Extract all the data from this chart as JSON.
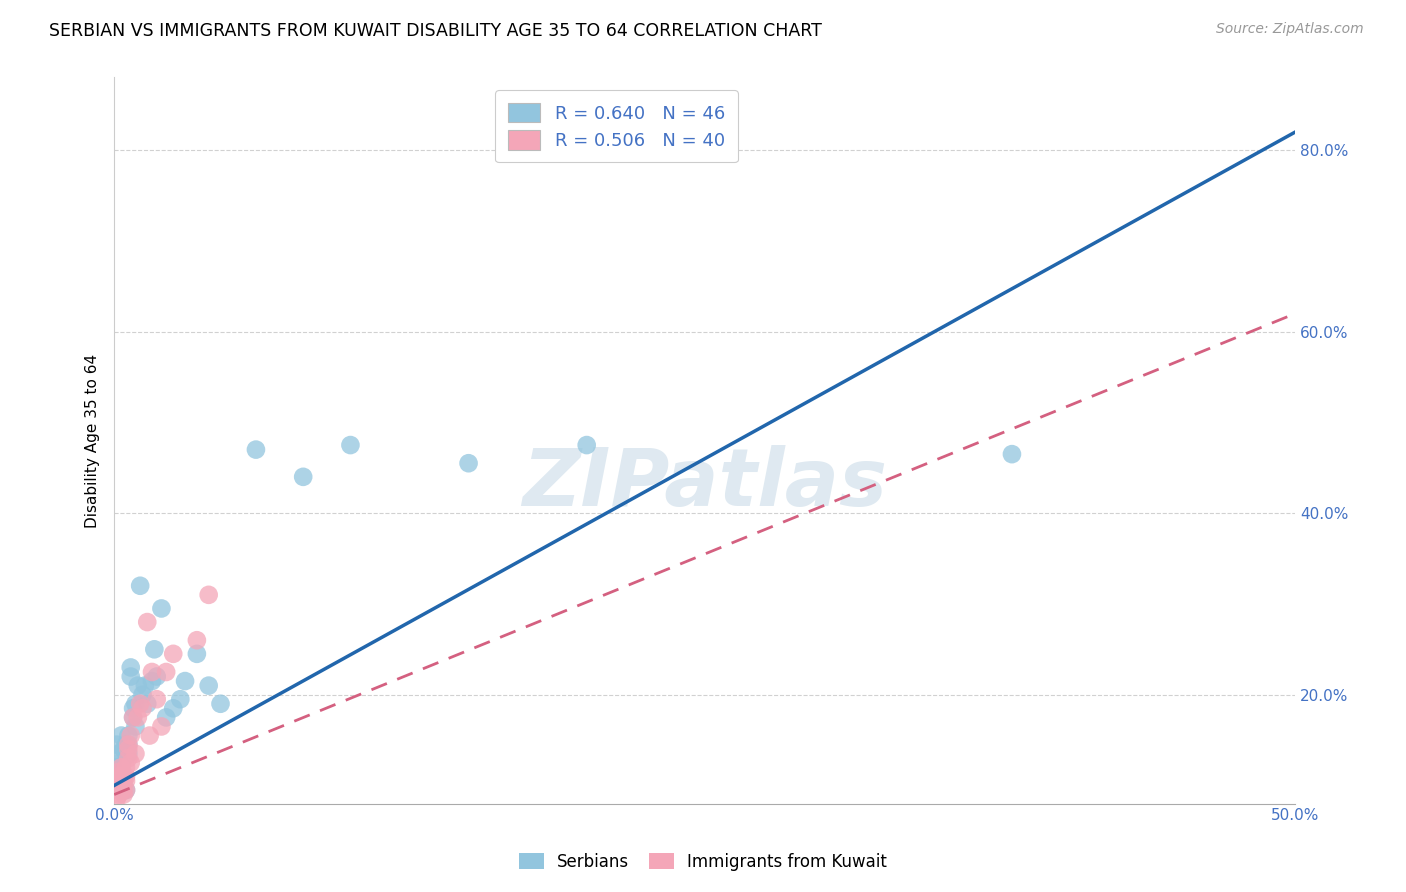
{
  "title": "SERBIAN VS IMMIGRANTS FROM KUWAIT DISABILITY AGE 35 TO 64 CORRELATION CHART",
  "source": "Source: ZipAtlas.com",
  "ylabel": "Disability Age 35 to 64",
  "watermark": "ZIPatlas",
  "legend_label1": "Serbians",
  "legend_label2": "Immigrants from Kuwait",
  "blue_color": "#92c5de",
  "pink_color": "#f4a6b8",
  "blue_line_color": "#2166ac",
  "pink_line_color": "#d46080",
  "xlim": [
    0.0,
    0.5
  ],
  "ylim": [
    0.08,
    0.88
  ],
  "xticks": [
    0.0,
    0.1,
    0.2,
    0.3,
    0.4,
    0.5
  ],
  "yticks": [
    0.2,
    0.4,
    0.6,
    0.8
  ],
  "xlabel_ticks": [
    "0.0%",
    "",
    "",
    "",
    "",
    "50.0%"
  ],
  "ylabel_ticks": [
    "20.0%",
    "40.0%",
    "60.0%",
    "80.0%"
  ],
  "serbian_x": [
    0.001,
    0.001,
    0.002,
    0.002,
    0.002,
    0.003,
    0.003,
    0.003,
    0.003,
    0.004,
    0.004,
    0.004,
    0.005,
    0.005,
    0.005,
    0.006,
    0.006,
    0.006,
    0.007,
    0.007,
    0.008,
    0.008,
    0.009,
    0.009,
    0.01,
    0.011,
    0.012,
    0.013,
    0.014,
    0.016,
    0.017,
    0.018,
    0.02,
    0.022,
    0.025,
    0.028,
    0.03,
    0.035,
    0.04,
    0.045,
    0.06,
    0.08,
    0.1,
    0.15,
    0.2,
    0.38
  ],
  "serbian_y": [
    0.145,
    0.12,
    0.135,
    0.115,
    0.105,
    0.12,
    0.105,
    0.095,
    0.155,
    0.14,
    0.13,
    0.11,
    0.145,
    0.135,
    0.095,
    0.155,
    0.145,
    0.135,
    0.23,
    0.22,
    0.185,
    0.175,
    0.165,
    0.19,
    0.21,
    0.32,
    0.2,
    0.21,
    0.19,
    0.215,
    0.25,
    0.22,
    0.295,
    0.175,
    0.185,
    0.195,
    0.215,
    0.245,
    0.21,
    0.19,
    0.47,
    0.44,
    0.475,
    0.455,
    0.475,
    0.465
  ],
  "kuwait_x": [
    0.001,
    0.001,
    0.001,
    0.001,
    0.002,
    0.002,
    0.002,
    0.002,
    0.002,
    0.003,
    0.003,
    0.003,
    0.003,
    0.004,
    0.004,
    0.004,
    0.004,
    0.005,
    0.005,
    0.005,
    0.005,
    0.006,
    0.006,
    0.006,
    0.007,
    0.007,
    0.008,
    0.009,
    0.01,
    0.011,
    0.012,
    0.014,
    0.015,
    0.016,
    0.018,
    0.02,
    0.022,
    0.025,
    0.035,
    0.04
  ],
  "kuwait_y": [
    0.105,
    0.1,
    0.095,
    0.085,
    0.115,
    0.1,
    0.095,
    0.11,
    0.09,
    0.105,
    0.1,
    0.095,
    0.12,
    0.11,
    0.105,
    0.095,
    0.09,
    0.12,
    0.105,
    0.11,
    0.095,
    0.14,
    0.13,
    0.145,
    0.155,
    0.125,
    0.175,
    0.135,
    0.175,
    0.19,
    0.185,
    0.28,
    0.155,
    0.225,
    0.195,
    0.165,
    0.225,
    0.245,
    0.26,
    0.31
  ],
  "blue_line_x": [
    0.0,
    0.5
  ],
  "blue_line_y": [
    0.1,
    0.82
  ],
  "pink_line_x": [
    0.0,
    0.5
  ],
  "pink_line_y": [
    0.09,
    0.62
  ]
}
